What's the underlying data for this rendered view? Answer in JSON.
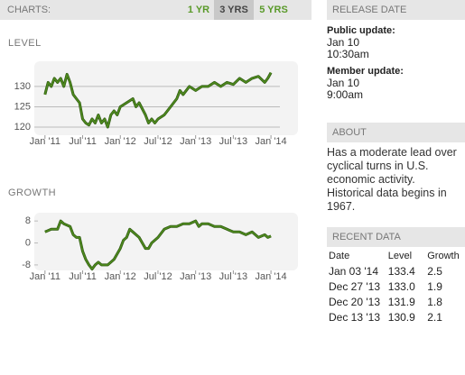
{
  "tabs": {
    "label": "CHARTS:",
    "items": [
      "1 YR",
      "3 YRS",
      "5 YRS"
    ],
    "selected": 1
  },
  "chart_data": [
    {
      "type": "line",
      "title": "LEVEL",
      "color": "#4f8a1e",
      "grid": true,
      "x": [
        0,
        0.5,
        1,
        1.5,
        2,
        2.5,
        3,
        3.5,
        4,
        4.5,
        5,
        5.5,
        6,
        6.5,
        7,
        7.5,
        8,
        8.5,
        9,
        9.5,
        10,
        10.5,
        11,
        11.5,
        12,
        13,
        14,
        14.5,
        15,
        16,
        16.5,
        17,
        17.5,
        18,
        19,
        20,
        21,
        21.5,
        22,
        23,
        24,
        25,
        26,
        27,
        28,
        29,
        30,
        31,
        32,
        33,
        34,
        35,
        35.5,
        36
      ],
      "values": [
        128,
        131,
        130,
        132,
        131,
        132,
        130,
        133,
        131,
        128,
        127,
        126,
        122,
        121,
        120.5,
        122,
        121,
        123,
        121,
        122,
        120,
        123,
        124,
        123,
        125,
        126,
        127,
        125,
        126,
        123,
        121,
        122,
        121,
        122,
        123,
        125,
        127,
        129,
        128,
        130,
        129,
        130,
        130,
        131,
        130,
        131,
        130.5,
        132,
        131,
        132,
        132.5,
        131,
        132,
        133.4
      ],
      "xlim": [
        -1.7,
        40.3
      ],
      "ylim": [
        118,
        136.2
      ],
      "xticks": [
        {
          "value": 0,
          "label": "Jan '11"
        },
        {
          "value": 6,
          "label": "Jul '11"
        },
        {
          "value": 12,
          "label": "Jan '12"
        },
        {
          "value": 18,
          "label": "Jul '12"
        },
        {
          "value": 24,
          "label": "Jan '13"
        },
        {
          "value": 30,
          "label": "Jul '13"
        },
        {
          "value": 36,
          "label": "Jan '14"
        }
      ],
      "yticks": [
        120,
        125,
        130
      ]
    },
    {
      "type": "line",
      "title": "GROWTH",
      "color": "#4f8a1e",
      "grid": false,
      "x": [
        0,
        1,
        2,
        2.5,
        3,
        4,
        4.5,
        5,
        5.5,
        6,
        6.5,
        7,
        7.5,
        8,
        8.5,
        9,
        10,
        11,
        12,
        12.5,
        13,
        13.5,
        14,
        15,
        15.5,
        16,
        16.5,
        17,
        18,
        19,
        20,
        21,
        22,
        23,
        24,
        24.5,
        25,
        26,
        27,
        28,
        29,
        30,
        31,
        32,
        33,
        34,
        35,
        35.5,
        36
      ],
      "values": [
        4,
        5,
        5,
        8,
        7,
        6,
        3,
        2,
        2,
        -3,
        -6,
        -8,
        -9.5,
        -8,
        -7,
        -8,
        -8,
        -6,
        -2,
        1,
        2,
        5,
        4,
        2,
        0,
        -2,
        -2,
        0,
        2,
        5,
        6,
        6,
        7,
        7,
        8,
        6,
        7,
        7,
        6,
        6,
        5,
        4,
        4,
        3,
        4,
        2,
        3,
        2,
        2.5
      ],
      "xlim": [
        -1.7,
        40.3
      ],
      "ylim": [
        -10,
        11
      ],
      "xticks": [
        {
          "value": 0,
          "label": "Jan '11"
        },
        {
          "value": 6,
          "label": "Jul '11"
        },
        {
          "value": 12,
          "label": "Jan '12"
        },
        {
          "value": 18,
          "label": "Jul '12"
        },
        {
          "value": 24,
          "label": "Jan '13"
        },
        {
          "value": 30,
          "label": "Jul '13"
        },
        {
          "value": 36,
          "label": "Jan '14"
        }
      ],
      "yticks": [
        -8,
        0,
        8
      ]
    }
  ],
  "release_date": {
    "title": "RELEASE DATE",
    "public_label": "Public update:",
    "public_date": "Jan 10",
    "public_time": "10:30am",
    "member_label": "Member update:",
    "member_date": "Jan 10",
    "member_time": "9:00am"
  },
  "about": {
    "title": "ABOUT",
    "text": "Has a moderate lead over cyclical turns in U.S. economic activity. Historical data begins in 1967."
  },
  "recent_data": {
    "title": "RECENT DATA",
    "columns": [
      "Date",
      "Level",
      "Growth"
    ],
    "rows": [
      [
        "Jan 03 '14",
        "133.4",
        "2.5"
      ],
      [
        "Dec 27 '13",
        "133.0",
        "1.9"
      ],
      [
        "Dec 20 '13",
        "131.9",
        "1.8"
      ],
      [
        "Dec 13 '13",
        "130.9",
        "2.1"
      ]
    ]
  }
}
